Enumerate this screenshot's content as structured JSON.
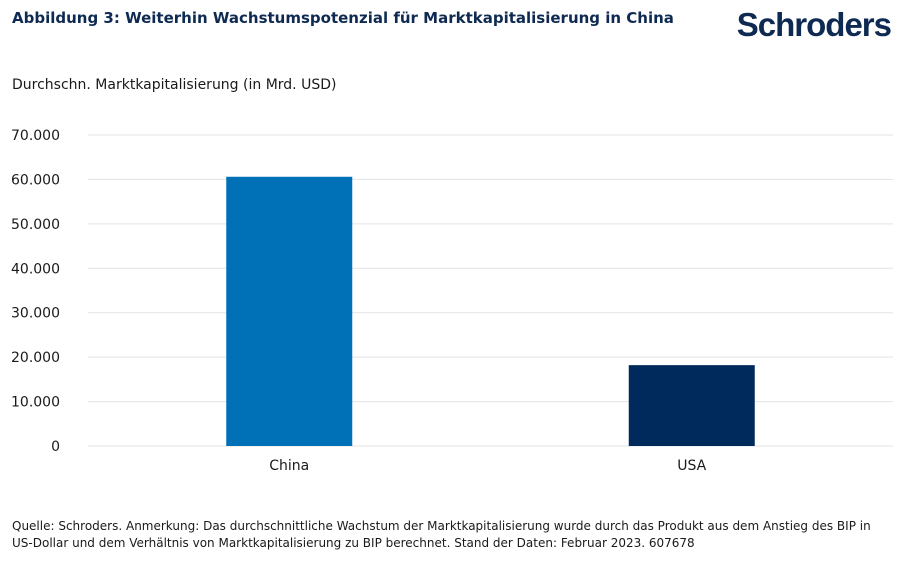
{
  "title": "Abbildung 3: Weiterhin Wachstumspotenzial für Marktkapitalisierung in China",
  "logo": "Schroders",
  "footnote": "Quelle: Schroders. Anmerkung: Das durchschnittliche Wachstum der Marktkapitalisierung wurde durch das Produkt aus dem Anstieg des BIP in US-Dollar und dem Verhältnis von Marktkapitalisierung zu BIP berechnet. Stand der Daten: Februar 2023. 607678",
  "chart_data": {
    "type": "bar",
    "title": "Abbildung 3: Weiterhin Wachstumspotenzial für Marktkapitalisierung in China",
    "ylabel": "Durchschn. Marktkapitalisierung (in Mrd. USD)",
    "xlabel": "",
    "categories": [
      "China",
      "USA"
    ],
    "values": [
      60600,
      18200
    ],
    "colors": [
      "#0071b7",
      "#002a5c"
    ],
    "ylim": [
      0,
      70000
    ],
    "yticks": [
      0,
      10000,
      20000,
      30000,
      40000,
      50000,
      60000,
      70000
    ],
    "ytick_labels": [
      "0",
      "10.000",
      "20.000",
      "30.000",
      "40.000",
      "50.000",
      "60.000",
      "70.000"
    ],
    "grid": true,
    "legend": "none"
  }
}
